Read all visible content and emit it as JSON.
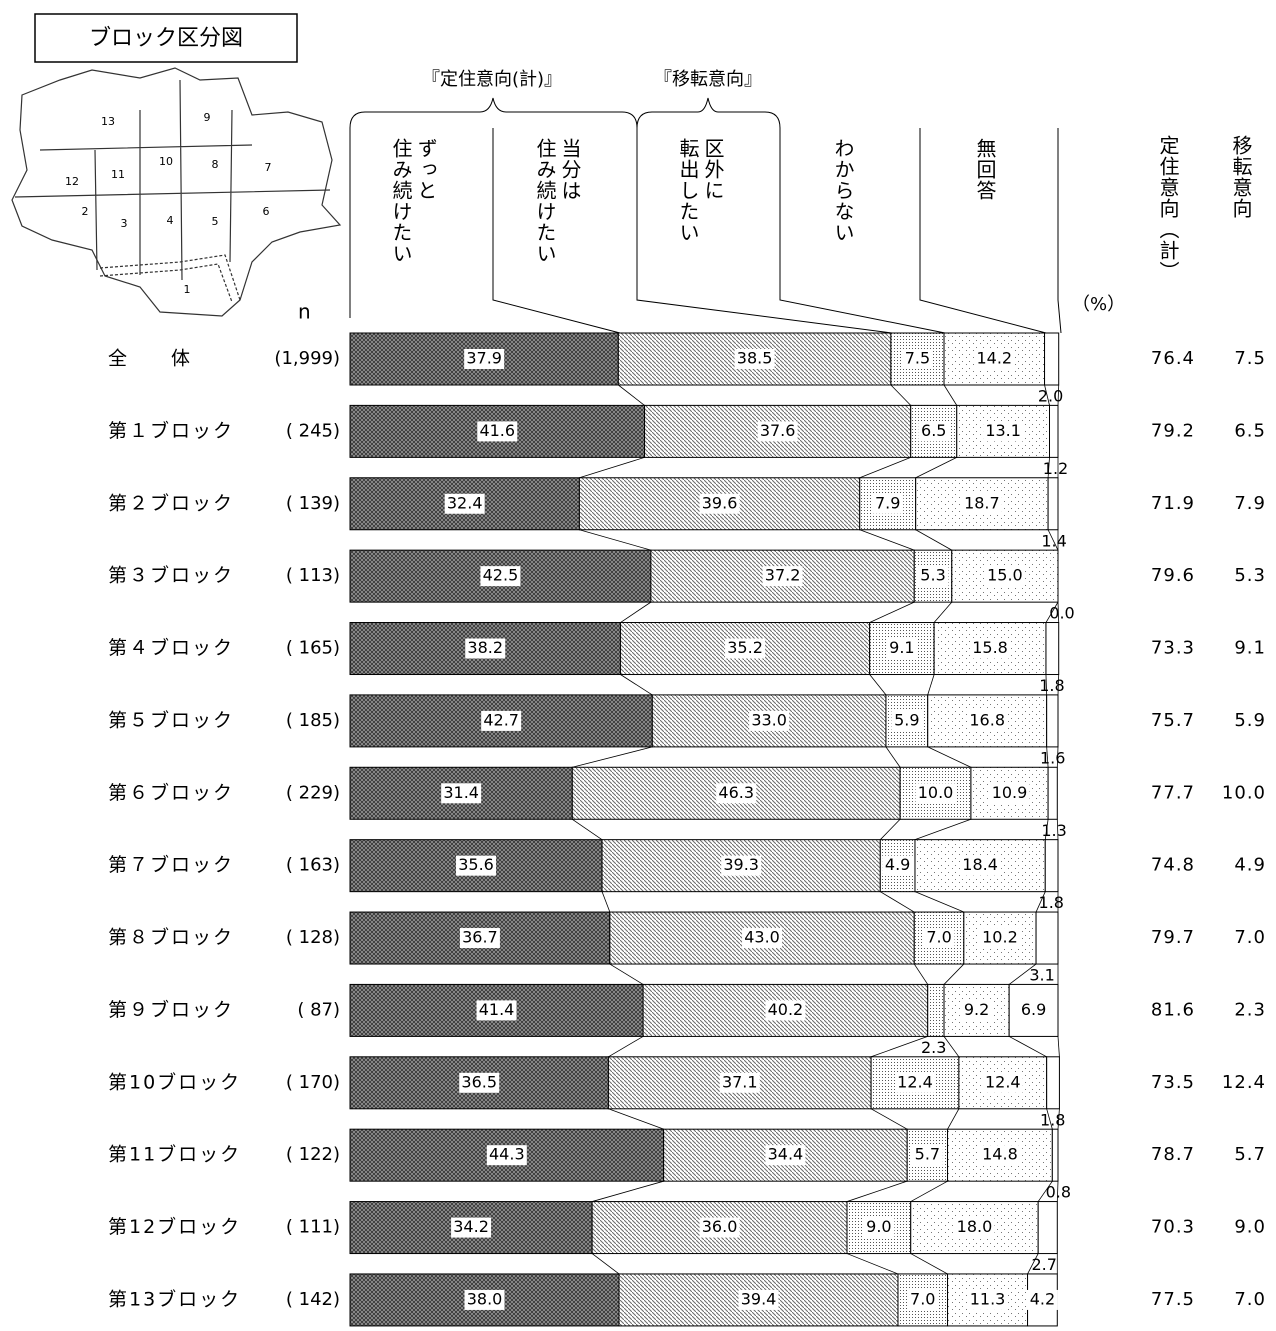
{
  "chart_data": {
    "type": "stacked-bar-100",
    "map": {
      "title": "ブロック区分図",
      "labels": [
        "13",
        "9",
        "12",
        "11",
        "10",
        "8",
        "7",
        "2",
        "3",
        "4",
        "5",
        "6",
        "1"
      ]
    },
    "n_header": "n",
    "unit": "（%）",
    "groups": [
      "『定住意向(計)』",
      "『移転意向』"
    ],
    "categories": [
      "全　　体",
      "第１ブロック",
      "第２ブロック",
      "第３ブロック",
      "第４ブロック",
      "第５ブロック",
      "第６ブロック",
      "第７ブロック",
      "第８ブロック",
      "第９ブロック",
      "第10ブロック",
      "第11ブロック",
      "第12ブロック",
      "第13ブロック"
    ],
    "n_labels": [
      "(1,999)",
      "(  245)",
      "(  139)",
      "(  113)",
      "(  165)",
      "(  185)",
      "(  229)",
      "(  163)",
      "(  128)",
      "(    87)",
      "(  170)",
      "(  122)",
      "(  111)",
      "(  142)"
    ],
    "xlim": [
      0,
      100
    ],
    "series": [
      {
        "name": "ずっと\n住み続けたい",
        "color": "#6a6a6a",
        "pattern": "crosshatch",
        "values": [
          37.9,
          41.6,
          32.4,
          42.5,
          38.2,
          42.7,
          31.4,
          35.6,
          36.7,
          41.4,
          36.5,
          44.3,
          34.2,
          38.0
        ],
        "value_labels": [
          "37.9",
          "41.6",
          "32.4",
          "42.5",
          "38.2",
          "42.7",
          "31.4",
          "35.6",
          "36.7",
          "41.4",
          "36.5",
          "44.3",
          "34.2",
          "38.0"
        ]
      },
      {
        "name": "当分は\n住み続けたい",
        "color": "#8a8a8a",
        "pattern": "diagonal",
        "values": [
          38.5,
          37.6,
          39.6,
          37.2,
          35.2,
          33.0,
          46.3,
          39.3,
          43.0,
          40.2,
          37.1,
          34.4,
          36.0,
          39.4
        ],
        "value_labels": [
          "38.5",
          "37.6",
          "39.6",
          "37.2",
          "35.2",
          "33.0",
          "46.3",
          "39.3",
          "43.0",
          "40.2",
          "37.1",
          "34.4",
          "36.0",
          "39.4"
        ]
      },
      {
        "name": "区外に\n転出したい",
        "color": "#777777",
        "pattern": "dense-dots",
        "values": [
          7.5,
          6.5,
          7.9,
          5.3,
          9.1,
          5.9,
          10.0,
          4.9,
          7.0,
          2.3,
          12.4,
          5.7,
          9.0,
          7.0
        ],
        "value_labels": [
          "7.5",
          "6.5",
          "7.9",
          "5.3",
          "9.1",
          "5.9",
          "10.0",
          "4.9",
          "7.0",
          "2.3",
          "12.4",
          "5.7",
          "9.0",
          "7.0"
        ]
      },
      {
        "name": "わからない",
        "color": "#999999",
        "pattern": "sparse-dots",
        "values": [
          14.2,
          13.1,
          18.7,
          15.0,
          15.8,
          16.8,
          10.9,
          18.4,
          10.2,
          9.2,
          12.4,
          14.8,
          18.0,
          11.3
        ],
        "value_labels": [
          "14.2",
          "13.1",
          "18.7",
          "15.0",
          "15.8",
          "16.8",
          "10.9",
          "18.4",
          "10.2",
          "9.2",
          "12.4",
          "14.8",
          "18.0",
          "11.3"
        ]
      },
      {
        "name": "無回答",
        "color": "#ffffff",
        "pattern": "none",
        "values": [
          2.0,
          1.2,
          1.4,
          0.0,
          1.8,
          1.6,
          1.3,
          1.8,
          3.1,
          6.9,
          1.8,
          0.8,
          2.7,
          4.2
        ],
        "value_labels": [
          "2.0",
          "1.2",
          "1.4",
          "0.0",
          "1.8",
          "1.6",
          "1.3",
          "1.8",
          "3.1",
          "6.9",
          "1.8",
          "0.8",
          "2.7",
          "4.2"
        ]
      }
    ],
    "summary": [
      {
        "name": "定住意向（計）",
        "values": [
          76.4,
          79.2,
          71.9,
          79.6,
          73.3,
          75.7,
          77.7,
          74.8,
          79.7,
          81.6,
          73.5,
          78.7,
          70.3,
          77.5
        ],
        "value_labels": [
          "76.4",
          "79.2",
          "71.9",
          "79.6",
          "73.3",
          "75.7",
          "77.7",
          "74.8",
          "79.7",
          "81.6",
          "73.5",
          "78.7",
          "70.3",
          "77.5"
        ]
      },
      {
        "name": "移転意向",
        "values": [
          7.5,
          6.5,
          7.9,
          5.3,
          9.1,
          5.9,
          10.0,
          4.9,
          7.0,
          2.3,
          12.4,
          5.7,
          9.0,
          7.0
        ],
        "value_labels": [
          "7.5",
          "6.5",
          "7.9",
          "5.3",
          "9.1",
          "5.9",
          "10.0",
          "4.9",
          "7.0",
          "2.3",
          "12.4",
          "5.7",
          "9.0",
          "7.0"
        ]
      }
    ]
  }
}
